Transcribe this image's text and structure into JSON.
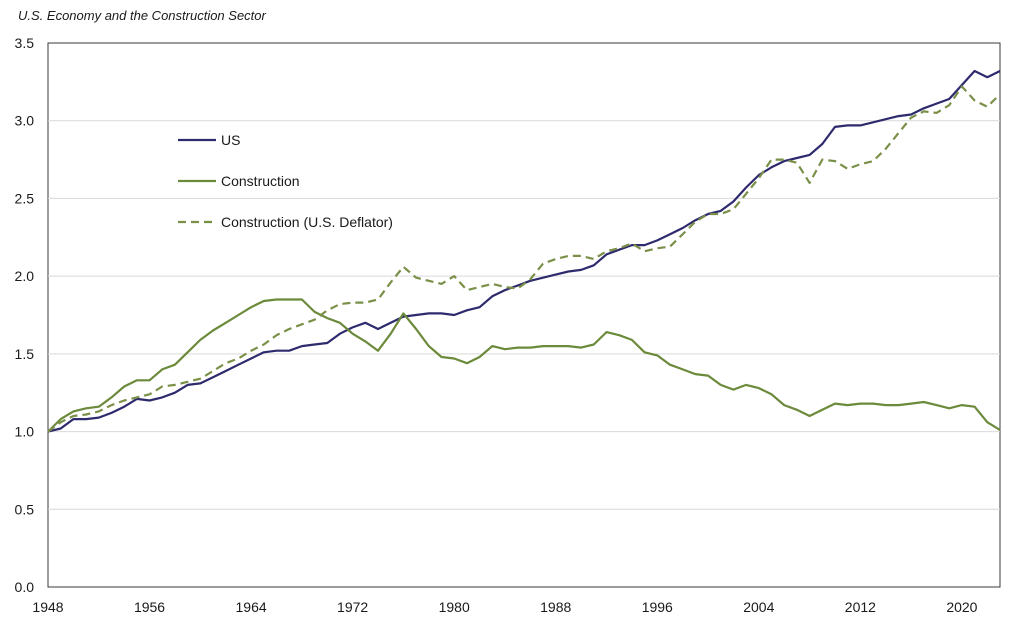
{
  "subtitle": "U.S. Economy and the Construction Sector",
  "chart_data": {
    "type": "line",
    "xlim": [
      1948,
      2023
    ],
    "ylim": [
      0,
      3.5
    ],
    "x_ticks": [
      "1948",
      "1956",
      "1964",
      "1972",
      "1980",
      "1988",
      "1996",
      "2004",
      "2012",
      "2020"
    ],
    "y_ticks": [
      "0.0",
      "0.5",
      "1.0",
      "1.5",
      "2.0",
      "2.5",
      "3.0",
      "3.5"
    ],
    "grid": "horizontal",
    "legend_position": "top-left",
    "x": [
      1948,
      1949,
      1950,
      1951,
      1952,
      1953,
      1954,
      1955,
      1956,
      1957,
      1958,
      1959,
      1960,
      1961,
      1962,
      1963,
      1964,
      1965,
      1966,
      1967,
      1968,
      1969,
      1970,
      1971,
      1972,
      1973,
      1974,
      1975,
      1976,
      1977,
      1978,
      1979,
      1980,
      1981,
      1982,
      1983,
      1984,
      1985,
      1986,
      1987,
      1988,
      1989,
      1990,
      1991,
      1992,
      1993,
      1994,
      1995,
      1996,
      1997,
      1998,
      1999,
      2000,
      2001,
      2002,
      2003,
      2004,
      2005,
      2006,
      2007,
      2008,
      2009,
      2010,
      2011,
      2012,
      2013,
      2014,
      2015,
      2016,
      2017,
      2018,
      2019,
      2020,
      2021,
      2022,
      2023
    ],
    "series": [
      {
        "name": "US",
        "color": "#2e2a6e",
        "dash": "solid",
        "values": [
          1.0,
          1.02,
          1.08,
          1.08,
          1.09,
          1.12,
          1.16,
          1.21,
          1.2,
          1.22,
          1.25,
          1.3,
          1.31,
          1.35,
          1.39,
          1.43,
          1.47,
          1.51,
          1.52,
          1.52,
          1.55,
          1.56,
          1.57,
          1.63,
          1.67,
          1.7,
          1.66,
          1.7,
          1.74,
          1.75,
          1.76,
          1.76,
          1.75,
          1.78,
          1.8,
          1.87,
          1.91,
          1.94,
          1.97,
          1.99,
          2.01,
          2.03,
          2.04,
          2.07,
          2.14,
          2.17,
          2.2,
          2.2,
          2.23,
          2.27,
          2.31,
          2.36,
          2.4,
          2.42,
          2.48,
          2.57,
          2.65,
          2.7,
          2.74,
          2.76,
          2.78,
          2.85,
          2.96,
          2.97,
          2.97,
          2.99,
          3.01,
          3.03,
          3.04,
          3.08,
          3.11,
          3.14,
          3.23,
          3.32,
          3.28,
          3.32
        ]
      },
      {
        "name": "Construction",
        "color": "#6b8a3a",
        "dash": "solid",
        "values": [
          1.0,
          1.08,
          1.13,
          1.15,
          1.16,
          1.22,
          1.29,
          1.33,
          1.33,
          1.4,
          1.43,
          1.51,
          1.59,
          1.65,
          1.7,
          1.75,
          1.8,
          1.84,
          1.85,
          1.85,
          1.85,
          1.77,
          1.73,
          1.7,
          1.63,
          1.58,
          1.52,
          1.63,
          1.76,
          1.66,
          1.55,
          1.48,
          1.47,
          1.44,
          1.48,
          1.55,
          1.53,
          1.54,
          1.54,
          1.55,
          1.55,
          1.55,
          1.54,
          1.56,
          1.64,
          1.62,
          1.59,
          1.51,
          1.49,
          1.43,
          1.4,
          1.37,
          1.36,
          1.3,
          1.27,
          1.3,
          1.28,
          1.24,
          1.17,
          1.14,
          1.1,
          1.14,
          1.18,
          1.17,
          1.18,
          1.18,
          1.17,
          1.17,
          1.18,
          1.19,
          1.17,
          1.15,
          1.17,
          1.16,
          1.06,
          1.01
        ]
      },
      {
        "name": "Construction (U.S. Deflator)",
        "color": "#7a9048",
        "dash": "dashed",
        "values": [
          1.0,
          1.06,
          1.1,
          1.11,
          1.13,
          1.17,
          1.2,
          1.22,
          1.24,
          1.29,
          1.3,
          1.32,
          1.34,
          1.39,
          1.44,
          1.47,
          1.52,
          1.56,
          1.62,
          1.66,
          1.69,
          1.72,
          1.78,
          1.82,
          1.83,
          1.83,
          1.85,
          1.96,
          2.06,
          1.99,
          1.97,
          1.95,
          2.0,
          1.91,
          1.93,
          1.95,
          1.93,
          1.92,
          1.98,
          2.08,
          2.11,
          2.13,
          2.13,
          2.11,
          2.16,
          2.18,
          2.21,
          2.16,
          2.18,
          2.19,
          2.27,
          2.35,
          2.4,
          2.4,
          2.43,
          2.53,
          2.63,
          2.75,
          2.75,
          2.73,
          2.6,
          2.75,
          2.74,
          2.69,
          2.72,
          2.74,
          2.82,
          2.92,
          3.02,
          3.06,
          3.05,
          3.1,
          3.22,
          3.13,
          3.09,
          3.17
        ]
      }
    ]
  }
}
